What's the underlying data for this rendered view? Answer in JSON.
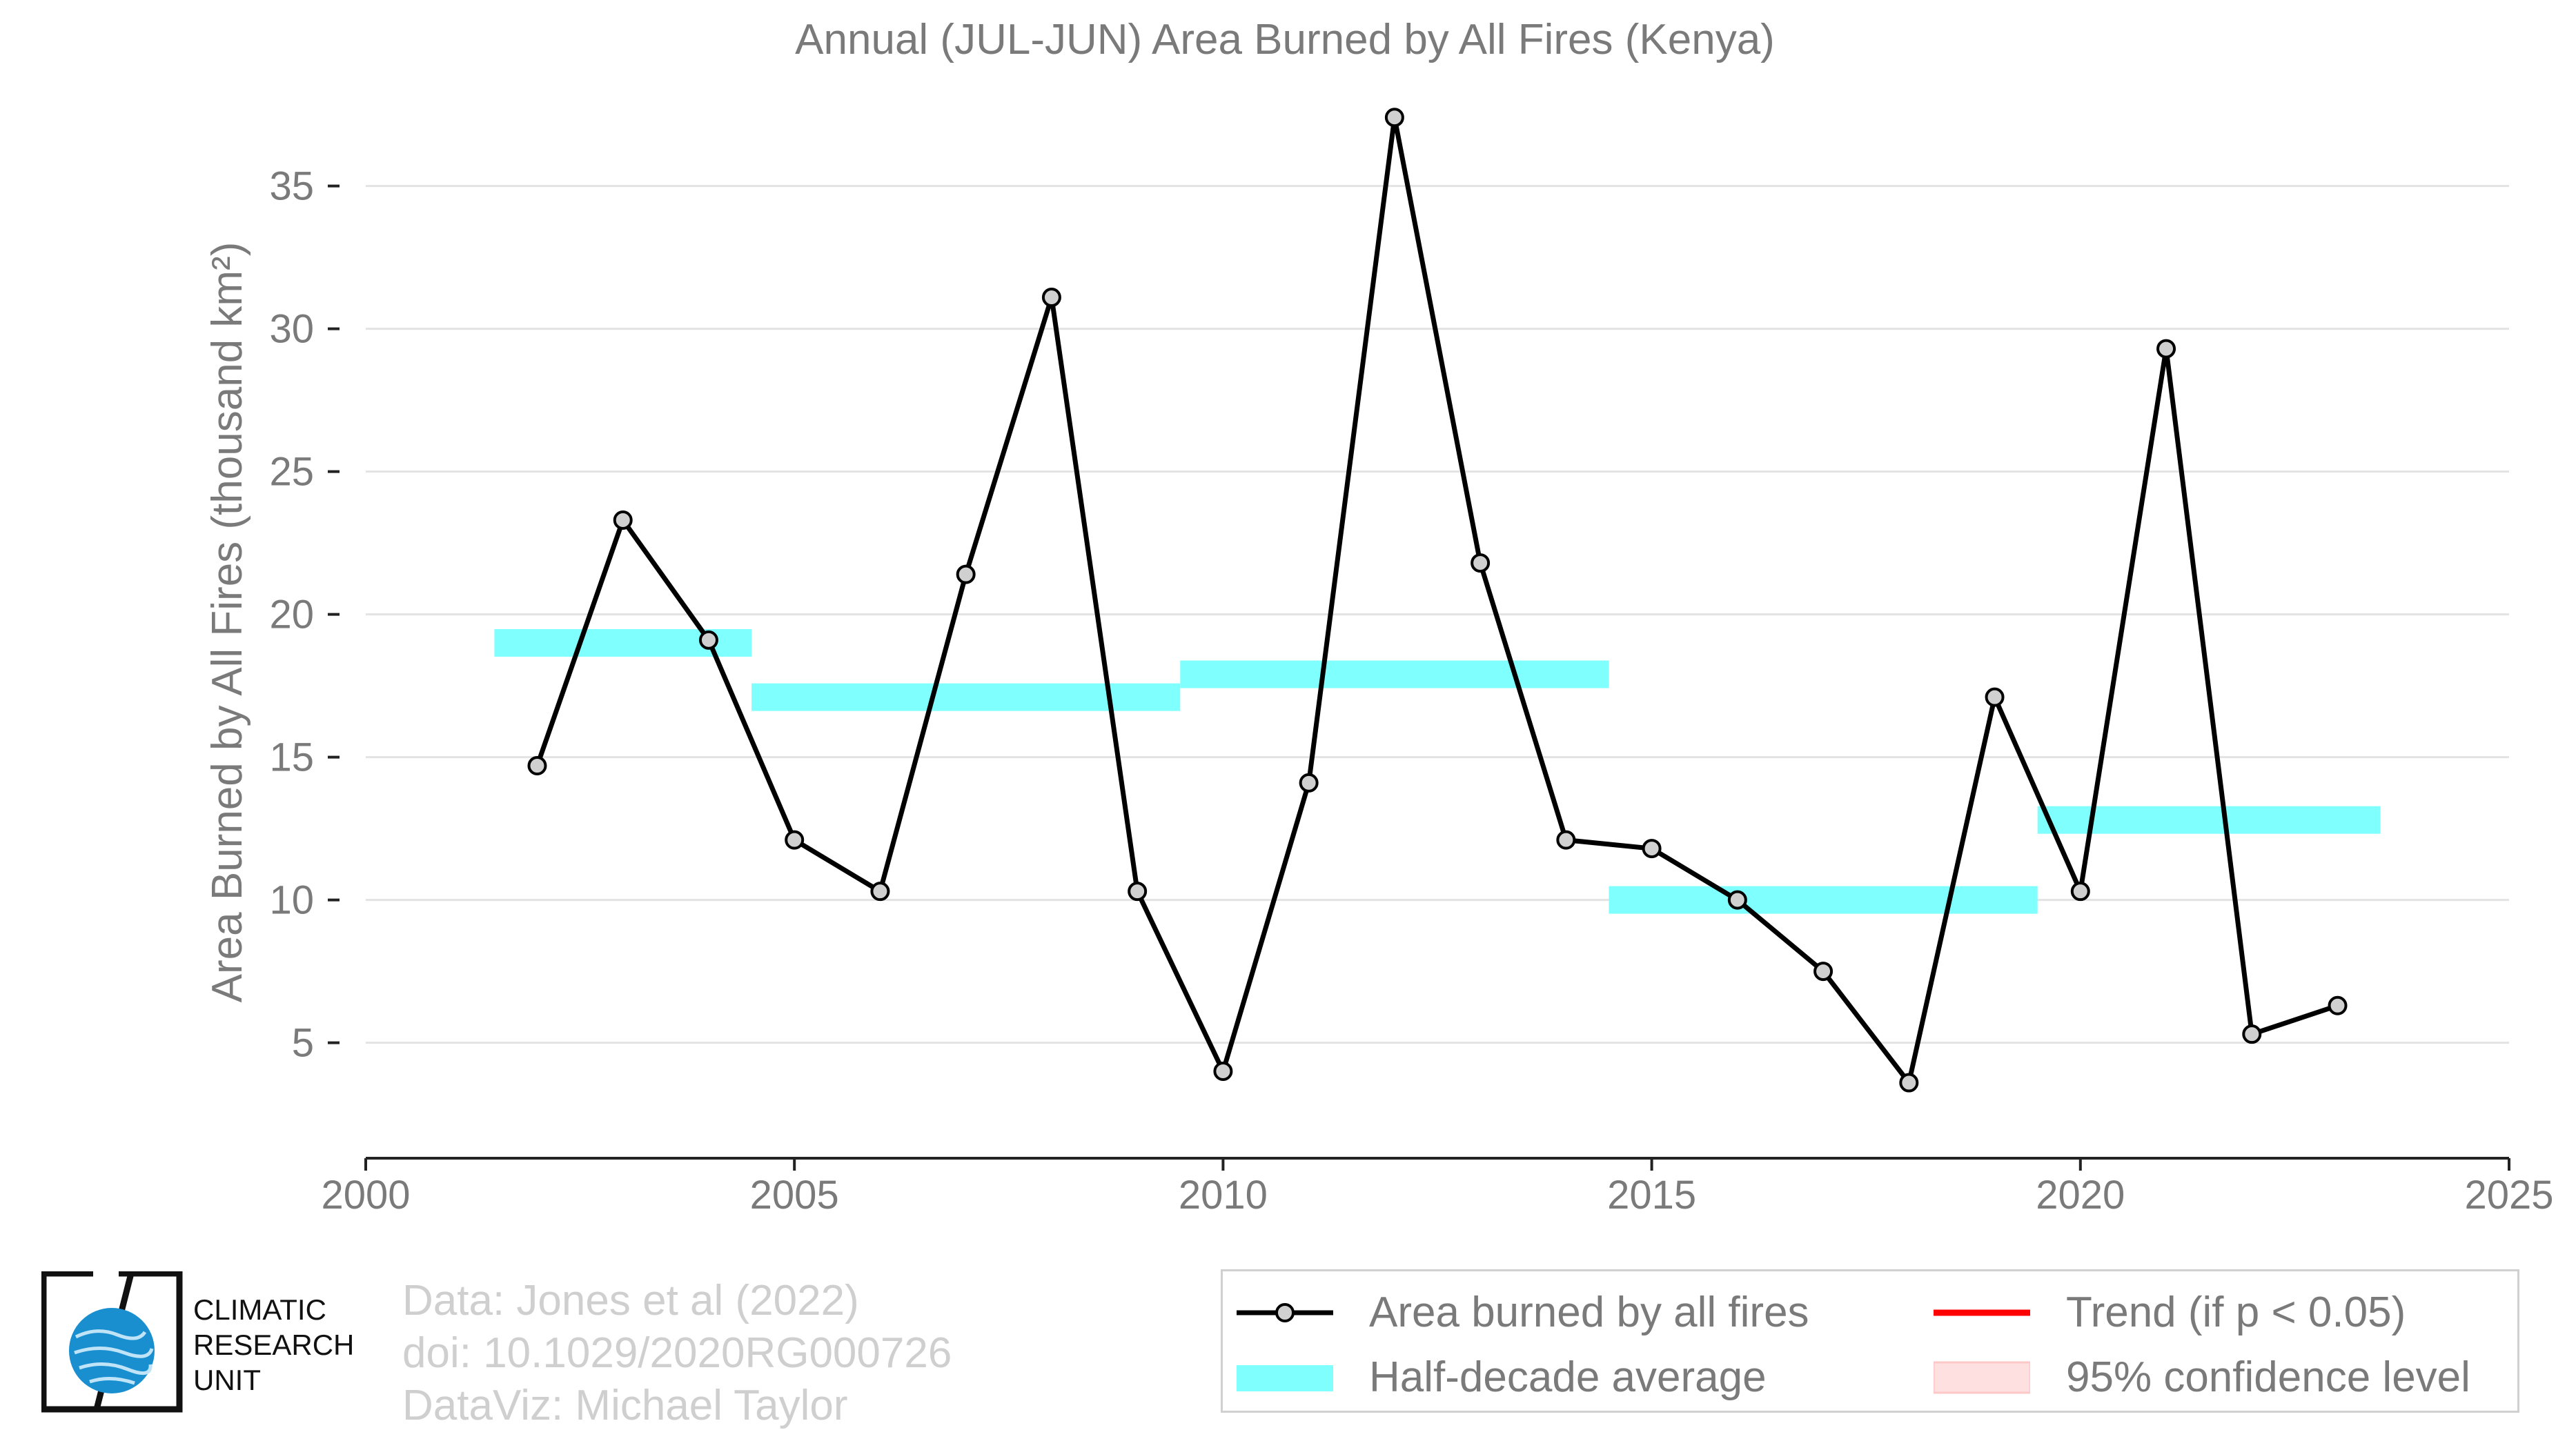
{
  "chart_data": {
    "type": "line",
    "title": "Annual (JUL-JUN) Area Burned by All Fires (Kenya)",
    "xlabel": "",
    "ylabel": "Area Burned by All Fires (thousand km²)",
    "xlim": [
      2000,
      2025
    ],
    "ylim": [
      1,
      38
    ],
    "x_ticks": [
      "2000",
      "2005",
      "2010",
      "2015",
      "2020",
      "2025"
    ],
    "y_ticks": [
      "5",
      "10",
      "15",
      "20",
      "25",
      "30",
      "35"
    ],
    "grid": true,
    "series": [
      {
        "name": "Area burned by all fires",
        "color": "#000000",
        "x": [
          2002,
          2003,
          2004,
          2005,
          2006,
          2007,
          2008,
          2009,
          2010,
          2011,
          2012,
          2013,
          2014,
          2015,
          2016,
          2017,
          2018,
          2019,
          2020,
          2021,
          2022,
          2023
        ],
        "y": [
          14.7,
          23.3,
          19.1,
          12.1,
          10.3,
          21.4,
          31.1,
          10.3,
          4.0,
          14.1,
          37.4,
          21.8,
          12.1,
          11.8,
          10.0,
          7.5,
          3.6,
          17.1,
          10.3,
          29.3,
          5.3,
          6.3
        ]
      }
    ],
    "half_decade_averages": {
      "name": "Half-decade average",
      "color": "#80ffff",
      "segments": [
        {
          "x0": 2001.5,
          "x1": 2004.5,
          "y": 19.0
        },
        {
          "x0": 2004.5,
          "x1": 2009.5,
          "y": 17.1
        },
        {
          "x0": 2009.5,
          "x1": 2014.5,
          "y": 17.9
        },
        {
          "x0": 2014.5,
          "x1": 2019.5,
          "y": 10.0
        },
        {
          "x0": 2019.5,
          "x1": 2023.5,
          "y": 12.8
        }
      ]
    },
    "legend": {
      "placement": "bottom-right",
      "entries": [
        {
          "label": "Area burned by all fires",
          "symbol": "line-marker",
          "color": "#000000"
        },
        {
          "label": "Trend (if p < 0.05)",
          "symbol": "line",
          "color": "#ff0000"
        },
        {
          "label": "Half-decade average",
          "symbol": "band",
          "color": "#80ffff"
        },
        {
          "label": "95% confidence level",
          "symbol": "patch",
          "color": "#ffe0e0"
        }
      ]
    }
  },
  "credits": {
    "line1": "Data: Jones et al (2022)",
    "line2": "doi: 10.1029/2020RG000726",
    "line3": "DataViz: Michael Taylor"
  },
  "logo": {
    "line1": "CLIMATIC",
    "line2": "RESEARCH",
    "line3": "UNIT"
  }
}
